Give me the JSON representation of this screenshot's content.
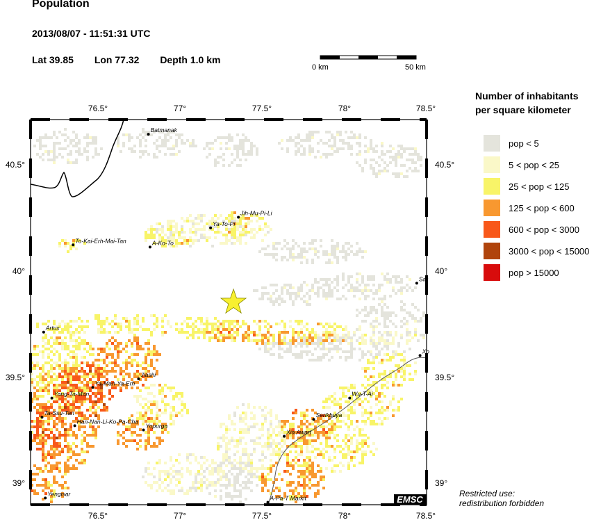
{
  "header": {
    "title": "Population",
    "datetime": "2013/08/07 - 11:51:31 UTC",
    "lat": "Lat 39.85",
    "lon": "Lon  77.32",
    "depth": "Depth  1.0 km"
  },
  "scale_bar": {
    "start_label": "0 km",
    "end_label": "50 km"
  },
  "map": {
    "x_ticks": [
      "76.5°",
      "77°",
      "77.5°",
      "78°",
      "78.5°"
    ],
    "y_ticks": [
      "40.5°",
      "40°",
      "39.5°",
      "39°"
    ],
    "epicenter": {
      "lon": 77.32,
      "lat": 39.85
    },
    "cities": [
      {
        "name": "Batmanak",
        "lon": 76.8,
        "lat": 40.64
      },
      {
        "name": "Jih-Mu-Pi-Li",
        "lon": 77.35,
        "lat": 40.25
      },
      {
        "name": "Ya-To-Pi",
        "lon": 77.18,
        "lat": 40.2
      },
      {
        "name": "To-Kai-Erh-Mai-Tan",
        "lon": 76.34,
        "lat": 40.12
      },
      {
        "name": "A-Ko-To",
        "lon": 76.81,
        "lat": 40.11
      },
      {
        "name": "Sar",
        "lon": 78.44,
        "lat": 39.94
      },
      {
        "name": "Artux",
        "lon": 76.16,
        "lat": 39.71
      },
      {
        "name": "Xo",
        "lon": 78.46,
        "lat": 39.6
      },
      {
        "name": "Jiashi",
        "lon": 76.74,
        "lat": 39.49
      },
      {
        "name": "Ya-Man-Ya-Erh",
        "lon": 76.46,
        "lat": 39.45
      },
      {
        "name": "Yang-Ta-Man",
        "lon": 76.21,
        "lat": 39.4
      },
      {
        "name": "Wu-T-Ai",
        "lon": 78.03,
        "lat": 39.4
      },
      {
        "name": "Serikbuya",
        "lon": 77.81,
        "lat": 39.3
      },
      {
        "name": "Ta-Ssu-Tan",
        "lon": 76.15,
        "lat": 39.31
      },
      {
        "name": "Han-Nan-Li-Ko-Pa-Cha",
        "lon": 76.35,
        "lat": 39.27
      },
      {
        "name": "Yopurga",
        "lon": 76.77,
        "lat": 39.25
      },
      {
        "name": "Xia Awart",
        "lon": 77.63,
        "lat": 39.22
      },
      {
        "name": "Yengisar",
        "lon": 76.17,
        "lat": 38.93
      },
      {
        "name": "A-Pa-T Markit",
        "lon": 77.53,
        "lat": 38.91
      }
    ],
    "badge": "EMSC"
  },
  "legend": {
    "title_line1": "Number of inhabitants",
    "title_line2": "per square kilometer",
    "items": [
      {
        "label": "pop < 5",
        "color": "#e4e4dc"
      },
      {
        "label": "5 < pop < 25",
        "color": "#faf8c8"
      },
      {
        "label": "25 < pop < 125",
        "color": "#f8f468"
      },
      {
        "label": "125 < pop < 600",
        "color": "#f89830"
      },
      {
        "label": "600 < pop < 3000",
        "color": "#f8581a"
      },
      {
        "label": "3000 < pop < 15000",
        "color": "#b0440c"
      },
      {
        "label": "pop > 15000",
        "color": "#d80c0c"
      }
    ]
  },
  "footer": {
    "line1": "Restricted use:",
    "line2": "redistribution forbidden"
  }
}
